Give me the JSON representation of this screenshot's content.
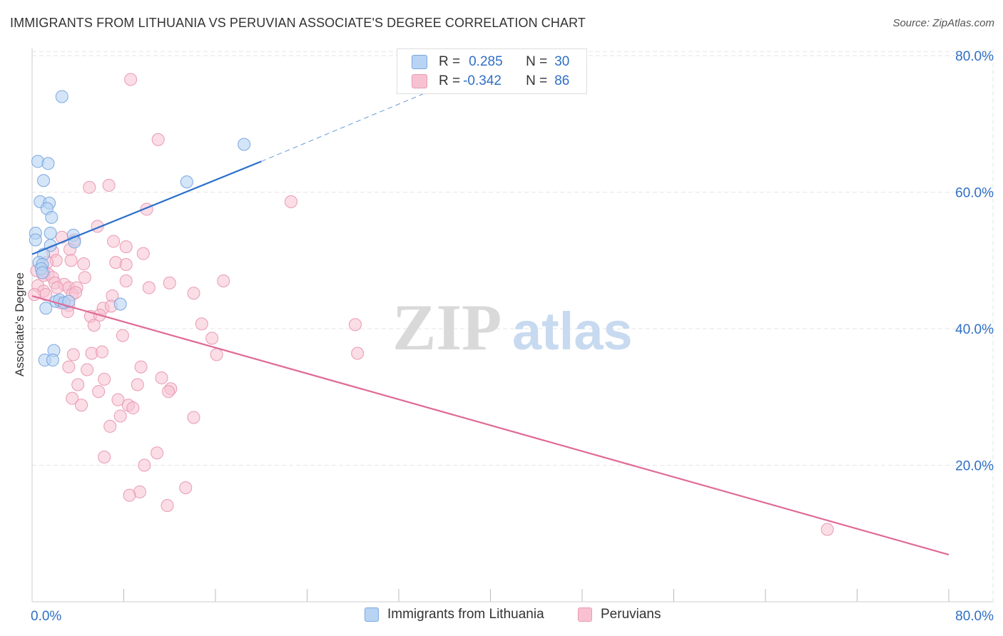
{
  "title": "IMMIGRANTS FROM LITHUANIA VS PERUVIAN ASSOCIATE'S DEGREE CORRELATION CHART",
  "source": "Source: ZipAtlas.com",
  "watermark": {
    "zip": "ZIP",
    "atlas": "atlas"
  },
  "colors": {
    "blue_fill": "#b8d3f4",
    "blue_stroke": "#7aa7e0",
    "blue_line": "#2a6fca",
    "pink_fill": "#f7c1d2",
    "pink_stroke": "#e89ab4",
    "pink_line": "#e06a97",
    "axis_text": "#2f6fc4",
    "grid": "#e6e6e6"
  },
  "legend": {
    "rows": [
      {
        "r_label": "R =",
        "r_value": "0.285",
        "n_label": "N =",
        "n_value": "30"
      },
      {
        "r_label": "R =",
        "r_value": "-0.342",
        "n_label": "N =",
        "n_value": "86"
      }
    ]
  },
  "bottom_legend": [
    "Immigrants from Lithuania",
    "Peruvians"
  ],
  "chart_data": {
    "type": "scatter",
    "ylabel": "Associate's Degree",
    "xlim": [
      0,
      80
    ],
    "ylim": [
      0,
      80
    ],
    "x_tick_labels": [
      "0.0%",
      "80.0%"
    ],
    "y_tick_labels": [
      "80.0%",
      "60.0%",
      "40.0%",
      "20.0%"
    ],
    "y_ticks": [
      80,
      60,
      40,
      20
    ],
    "grid": true,
    "series": [
      {
        "name": "Immigrants from Lithuania",
        "color": "#b8d3f4",
        "points": [
          [
            2.6,
            74
          ],
          [
            0.5,
            64.5
          ],
          [
            1.4,
            64.2
          ],
          [
            1.0,
            61.7
          ],
          [
            13.5,
            61.5
          ],
          [
            18.5,
            67
          ],
          [
            0.7,
            58.6
          ],
          [
            1.5,
            58.4
          ],
          [
            1.3,
            57.6
          ],
          [
            1.7,
            56.3
          ],
          [
            0.3,
            54.0
          ],
          [
            1.6,
            54.0
          ],
          [
            3.6,
            53.7
          ],
          [
            0.3,
            53.0
          ],
          [
            3.7,
            52.7
          ],
          [
            1.6,
            52.2
          ],
          [
            1.0,
            50.9
          ],
          [
            0.6,
            49.7
          ],
          [
            0.9,
            49.4
          ],
          [
            0.8,
            48.8
          ],
          [
            0.9,
            48.2
          ],
          [
            2.1,
            44.0
          ],
          [
            2.4,
            44.2
          ],
          [
            2.8,
            43.8
          ],
          [
            7.7,
            43.6
          ],
          [
            1.2,
            43.0
          ],
          [
            1.9,
            36.8
          ],
          [
            1.1,
            35.4
          ],
          [
            1.8,
            35.4
          ],
          [
            3.2,
            44.0
          ]
        ],
        "trend": {
          "x0": 0,
          "y0": 50.9,
          "x1": 20,
          "y1": 64.5,
          "dash_to_x": 35,
          "dash_to_y": 75
        }
      },
      {
        "name": "Peruvians",
        "color": "#f7c1d2",
        "points": [
          [
            8.6,
            76.5
          ],
          [
            11.0,
            67.7
          ],
          [
            5.0,
            60.7
          ],
          [
            6.7,
            61.0
          ],
          [
            22.6,
            58.6
          ],
          [
            10.0,
            57.5
          ],
          [
            5.7,
            55.0
          ],
          [
            2.6,
            53.4
          ],
          [
            3.7,
            53.0
          ],
          [
            7.1,
            52.8
          ],
          [
            8.2,
            52.0
          ],
          [
            3.3,
            51.6
          ],
          [
            1.8,
            51.3
          ],
          [
            9.7,
            51.0
          ],
          [
            2.1,
            50.0
          ],
          [
            3.4,
            50.0
          ],
          [
            1.3,
            49.7
          ],
          [
            4.5,
            49.5
          ],
          [
            7.3,
            49.7
          ],
          [
            8.2,
            49.4
          ],
          [
            0.4,
            48.5
          ],
          [
            1.0,
            48.4
          ],
          [
            1.4,
            48.0
          ],
          [
            1.0,
            47.8
          ],
          [
            1.8,
            47.5
          ],
          [
            4.6,
            47.5
          ],
          [
            8.2,
            47.0
          ],
          [
            16.7,
            47.0
          ],
          [
            2.0,
            46.7
          ],
          [
            2.8,
            46.5
          ],
          [
            12.0,
            46.7
          ],
          [
            0.5,
            46.3
          ],
          [
            2.2,
            46.0
          ],
          [
            3.2,
            46.0
          ],
          [
            3.9,
            46.0
          ],
          [
            10.2,
            46.0
          ],
          [
            1.0,
            45.5
          ],
          [
            1.2,
            45.0
          ],
          [
            3.5,
            45.0
          ],
          [
            3.8,
            45.3
          ],
          [
            7.0,
            44.8
          ],
          [
            14.1,
            45.2
          ],
          [
            2.5,
            43.8
          ],
          [
            3.2,
            43.4
          ],
          [
            6.2,
            43.0
          ],
          [
            6.9,
            43.3
          ],
          [
            3.1,
            42.5
          ],
          [
            5.1,
            41.8
          ],
          [
            5.9,
            42.0
          ],
          [
            5.4,
            40.5
          ],
          [
            14.8,
            40.7
          ],
          [
            28.2,
            40.6
          ],
          [
            7.9,
            39.0
          ],
          [
            15.7,
            38.6
          ],
          [
            3.6,
            36.2
          ],
          [
            5.2,
            36.4
          ],
          [
            6.1,
            36.6
          ],
          [
            16.1,
            36.2
          ],
          [
            28.4,
            36.4
          ],
          [
            3.2,
            34.4
          ],
          [
            4.8,
            34.0
          ],
          [
            9.5,
            34.4
          ],
          [
            6.3,
            32.6
          ],
          [
            11.3,
            32.8
          ],
          [
            4.0,
            31.8
          ],
          [
            9.2,
            31.8
          ],
          [
            12.1,
            31.2
          ],
          [
            5.8,
            30.8
          ],
          [
            11.9,
            30.8
          ],
          [
            3.5,
            29.8
          ],
          [
            7.5,
            29.6
          ],
          [
            8.4,
            28.8
          ],
          [
            4.3,
            28.8
          ],
          [
            8.8,
            28.4
          ],
          [
            7.7,
            27.2
          ],
          [
            14.1,
            27.0
          ],
          [
            6.8,
            25.7
          ],
          [
            10.9,
            21.8
          ],
          [
            6.3,
            21.2
          ],
          [
            9.8,
            20.0
          ],
          [
            13.4,
            16.7
          ],
          [
            9.4,
            16.1
          ],
          [
            8.5,
            15.6
          ],
          [
            11.8,
            14.1
          ],
          [
            69.4,
            10.6
          ],
          [
            0.2,
            45.0
          ]
        ],
        "trend": {
          "x0": 0,
          "y0": 44.8,
          "x1": 80,
          "y1": 6.9
        }
      }
    ]
  }
}
